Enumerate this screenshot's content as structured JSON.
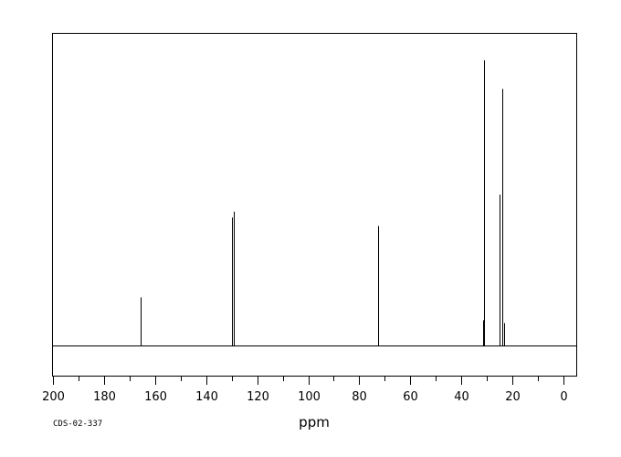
{
  "chart_data": {
    "type": "line",
    "title": "",
    "xlabel": "ppm",
    "ylabel": "",
    "xlim": [
      200,
      -5
    ],
    "x_reversed": true,
    "ylim": [
      -0.1,
      1.0
    ],
    "grid": false,
    "legend": "none",
    "x_ticks": [
      "200",
      "180",
      "160",
      "140",
      "120",
      "100",
      "80",
      "60",
      "40",
      "20",
      "0"
    ],
    "x_tick_values": [
      200,
      180,
      160,
      140,
      120,
      100,
      80,
      60,
      40,
      20,
      0
    ],
    "x_minor_tick_values": [
      190,
      170,
      150,
      130,
      110,
      90,
      70,
      50,
      30,
      10
    ],
    "peaks": [
      {
        "ppm": 165.5,
        "intensity": 0.17
      },
      {
        "ppm": 129.9,
        "intensity": 0.45
      },
      {
        "ppm": 129.3,
        "intensity": 0.47
      },
      {
        "ppm": 72.8,
        "intensity": 0.42
      },
      {
        "ppm": 72.5,
        "intensity": 0.035
      },
      {
        "ppm": 31.5,
        "intensity": 0.09
      },
      {
        "ppm": 31.2,
        "intensity": 1.0
      },
      {
        "ppm": 25.2,
        "intensity": 0.53
      },
      {
        "ppm": 24.0,
        "intensity": 0.9
      },
      {
        "ppm": 23.3,
        "intensity": 0.08
      }
    ],
    "color": "#000000"
  },
  "footer": {
    "code": "CDS-02-337"
  }
}
